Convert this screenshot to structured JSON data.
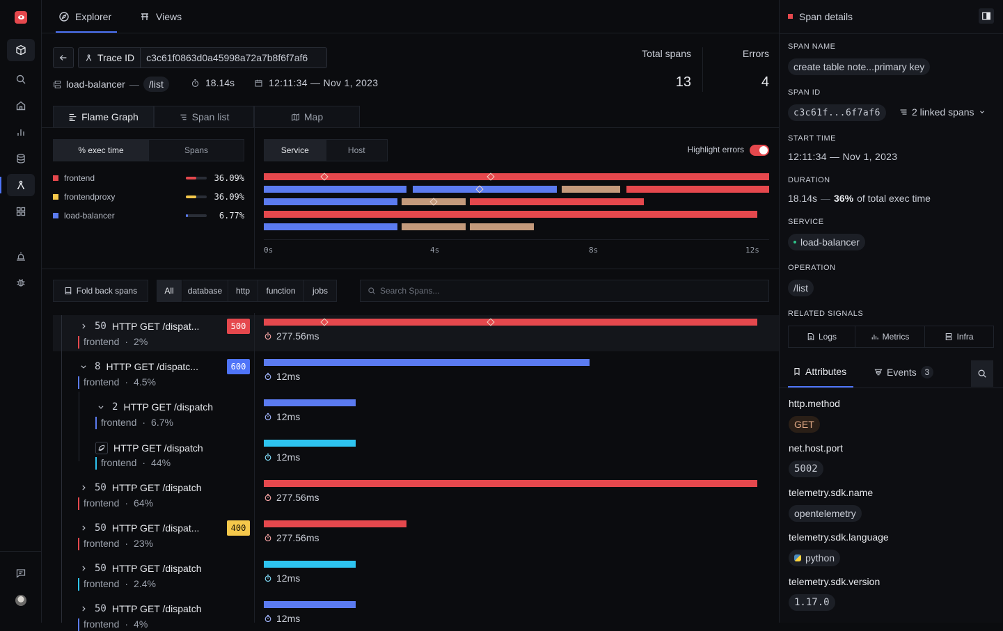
{
  "nav": {
    "top_tabs": [
      "Explorer",
      "Views"
    ]
  },
  "trace": {
    "trace_id_label": "Trace ID",
    "trace_id": "c3c61f0863d0a45998a72a7b8f6f7af6",
    "root_service": "load-balancer",
    "root_sep": "—",
    "root_operation": "/list",
    "duration": "18.14s",
    "timestamp": "12:11:34 — Nov 1, 2023",
    "total_spans_label": "Total spans",
    "total_spans": "13",
    "errors_label": "Errors",
    "errors": "4"
  },
  "view_tabs": [
    "Flame Graph",
    "Span list",
    "Map"
  ],
  "metric_toggle": [
    "% exec time",
    "Spans"
  ],
  "legend": [
    {
      "name": "frontend",
      "pct": "36.09%",
      "value": 0.3609,
      "color": "#e5484d"
    },
    {
      "name": "frontendproxy",
      "pct": "36.09%",
      "value": 0.3609,
      "color": "#f5c84b"
    },
    {
      "name": "load-balancer",
      "pct": "6.77%",
      "value": 0.0677,
      "color": "#5b7bf0"
    }
  ],
  "group_toggle": [
    "Service",
    "Host"
  ],
  "highlight_errors_label": "Highlight errors",
  "highlight_errors": true,
  "timeline_ticks": [
    "0s",
    "4s",
    "8s",
    "12s"
  ],
  "filters": {
    "fold_label": "Fold back spans",
    "types": [
      "All",
      "database",
      "http",
      "function",
      "jobs"
    ],
    "search_placeholder": "Search Spans..."
  },
  "spans": [
    {
      "count": "50",
      "name": "HTTP GET /dispat...",
      "service": "frontend",
      "pct": "2%",
      "code": "500",
      "duration": "277.56ms"
    },
    {
      "count": "8",
      "name": "HTTP GET /dispatc...",
      "service": "frontend",
      "pct": "4.5%",
      "code": "600",
      "duration": "12ms"
    },
    {
      "count": "2",
      "name": "HTTP GET /dispatch",
      "service": "frontend",
      "pct": "6.7%",
      "code": "",
      "duration": "12ms"
    },
    {
      "count": "",
      "name": "HTTP GET /dispatch",
      "service": "frontend",
      "pct": "44%",
      "code": "",
      "duration": "12ms"
    },
    {
      "count": "50",
      "name": "HTTP GET /dispatch",
      "service": "frontend",
      "pct": "64%",
      "code": "",
      "duration": "277.56ms"
    },
    {
      "count": "50",
      "name": "HTTP GET /dispat...",
      "service": "frontend",
      "pct": "23%",
      "code": "400",
      "duration": "277.56ms"
    },
    {
      "count": "50",
      "name": "HTTP GET /dispatch",
      "service": "frontend",
      "pct": "2.4%",
      "code": "",
      "duration": "12ms"
    },
    {
      "count": "50",
      "name": "HTTP GET /dispatch",
      "service": "frontend",
      "pct": "4%",
      "code": "",
      "duration": "12ms"
    }
  ],
  "sep_dot": "·",
  "panel": {
    "title": "Span details",
    "span_name_label": "SPAN NAME",
    "span_name": "create table note...primary key",
    "span_id_label": "SPAN ID",
    "span_id": "c3c61f...6f7af6",
    "linked_spans": "2 linked spans",
    "start_time_label": "START TIME",
    "start_time": "12:11:34 — Nov 1, 2023",
    "duration_label": "DURATION",
    "duration_value": "18.14s",
    "duration_sep": "—",
    "duration_pct": "36%",
    "duration_suffix": "of total exec time",
    "service_label": "SERVICE",
    "service": "load-balancer",
    "operation_label": "OPERATION",
    "operation": "/list",
    "related_label": "RELATED SIGNALS",
    "signals": [
      "Logs",
      "Metrics",
      "Infra"
    ],
    "tabs": {
      "attributes": "Attributes",
      "events": "Events",
      "events_count": "3"
    },
    "attributes": [
      {
        "key": "http.method",
        "value": "GET"
      },
      {
        "key": "net.host.port",
        "value": "5002"
      },
      {
        "key": "telemetry.sdk.name",
        "value": "opentelemetry"
      },
      {
        "key": "telemetry.sdk.language",
        "value": "python"
      },
      {
        "key": "telemetry.sdk.version",
        "value": "1.17.0"
      }
    ]
  },
  "colors": {
    "accent": "#4e74f8",
    "error": "#e5484d",
    "service_blue": "#5b7bf0",
    "service_tan": "#c49a7c",
    "service_cyan": "#2ec4f0",
    "warning": "#f5c84b"
  }
}
